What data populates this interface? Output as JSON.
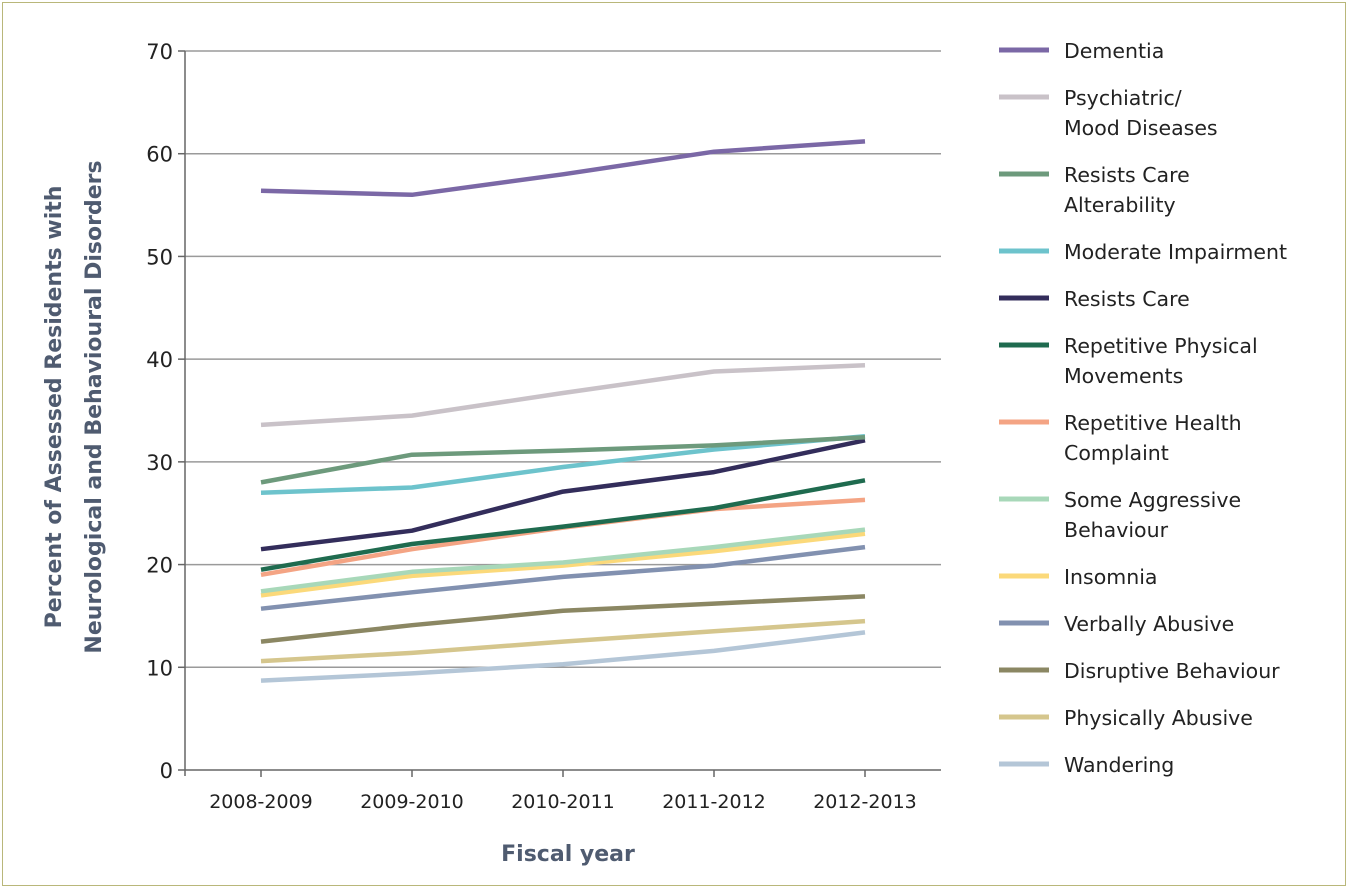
{
  "chart_data": {
    "type": "line",
    "title": "",
    "xlabel": "Fiscal year",
    "ylabel_lines": [
      "Percent of Assessed Residents with",
      "Neurological and Behavioural Disorders"
    ],
    "categories": [
      "2008-2009",
      "2009-2010",
      "2010-2011",
      "2011-2012",
      "2012-2013"
    ],
    "ylim": [
      0,
      70
    ],
    "yticks": [
      0,
      10,
      20,
      30,
      40,
      50,
      60,
      70
    ],
    "grid": true,
    "legend_position": "right",
    "series": [
      {
        "name_lines": [
          "Dementia"
        ],
        "color": "#7b68a6",
        "values": [
          56.4,
          56.0,
          58.0,
          60.2,
          61.2
        ]
      },
      {
        "name_lines": [
          "Psychiatric/",
          "Mood Diseases"
        ],
        "color": "#c9c2c8",
        "values": [
          33.6,
          34.5,
          36.7,
          38.8,
          39.4
        ]
      },
      {
        "name_lines": [
          "Resists Care",
          "Alterability"
        ],
        "color": "#6d9a7c",
        "values": [
          28.0,
          30.7,
          31.1,
          31.6,
          32.4
        ]
      },
      {
        "name_lines": [
          "Moderate Impairment"
        ],
        "color": "#6dc3cc",
        "values": [
          27.0,
          27.5,
          29.5,
          31.2,
          32.5
        ]
      },
      {
        "name_lines": [
          "Resists Care"
        ],
        "color": "#332d5b",
        "values": [
          21.5,
          23.3,
          27.1,
          29.0,
          32.1
        ]
      },
      {
        "name_lines": [
          "Repetitive Physical",
          "Movements"
        ],
        "color": "#1f6b4f",
        "values": [
          19.5,
          22.0,
          23.7,
          25.5,
          28.2
        ]
      },
      {
        "name_lines": [
          "Repetitive Health",
          "Complaint"
        ],
        "color": "#f4a484",
        "values": [
          19.0,
          21.5,
          23.6,
          25.4,
          26.3
        ]
      },
      {
        "name_lines": [
          "Some Aggressive",
          "Behaviour"
        ],
        "color": "#a8d8b9",
        "values": [
          17.4,
          19.3,
          20.2,
          21.7,
          23.4
        ]
      },
      {
        "name_lines": [
          "Insomnia"
        ],
        "color": "#fbd97a",
        "values": [
          17.0,
          18.9,
          19.9,
          21.3,
          23.0
        ]
      },
      {
        "name_lines": [
          "Verbally Abusive"
        ],
        "color": "#8291b0",
        "values": [
          15.7,
          17.3,
          18.8,
          19.9,
          21.7
        ]
      },
      {
        "name_lines": [
          "Disruptive Behaviour"
        ],
        "color": "#8b8763",
        "values": [
          12.5,
          14.1,
          15.5,
          16.2,
          16.9
        ]
      },
      {
        "name_lines": [
          "Physically Abusive"
        ],
        "color": "#d5c68d",
        "values": [
          10.6,
          11.4,
          12.5,
          13.5,
          14.5
        ]
      },
      {
        "name_lines": [
          "Wandering"
        ],
        "color": "#b4c6d7",
        "values": [
          8.7,
          9.4,
          10.3,
          11.6,
          13.4
        ]
      }
    ]
  }
}
